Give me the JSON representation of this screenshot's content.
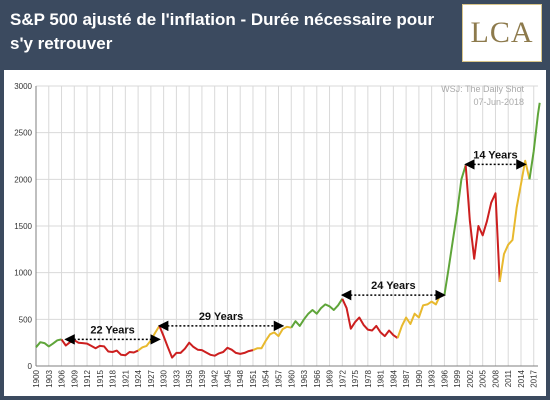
{
  "header": {
    "title": "S&P 500 ajusté de l'inflation - Durée nécessaire pour s'y retrouver",
    "logo_text": "LCA"
  },
  "chart_data": {
    "type": "line",
    "source": "WSJ: The Daily Shot",
    "date": "07-Jun-2018",
    "ylim": [
      0,
      3000
    ],
    "xlim": [
      1900,
      2018
    ],
    "y_ticks": [
      0,
      500,
      1000,
      1500,
      2000,
      2500,
      3000
    ],
    "x_ticks": [
      1900,
      1903,
      1906,
      1909,
      1912,
      1915,
      1918,
      1921,
      1924,
      1927,
      1930,
      1933,
      1936,
      1939,
      1942,
      1945,
      1948,
      1951,
      1954,
      1957,
      1960,
      1963,
      1966,
      1969,
      1972,
      1975,
      1978,
      1981,
      1984,
      1987,
      1990,
      1993,
      1996,
      1999,
      2002,
      2005,
      2008,
      2011,
      2014,
      2017
    ],
    "grid": true,
    "colors": {
      "green": "#5fa53a",
      "red": "#cc1f1f",
      "yellow": "#e8b92e",
      "grid": "#d9d9d9",
      "axis": "#7f7f7f",
      "text": "#333333"
    },
    "series": [
      {
        "color": "green",
        "points": [
          [
            1900,
            200
          ],
          [
            1901,
            255
          ],
          [
            1902,
            245
          ],
          [
            1903,
            210
          ],
          [
            1904,
            240
          ],
          [
            1905,
            275
          ],
          [
            1906,
            285
          ]
        ]
      },
      {
        "color": "red",
        "points": [
          [
            1906,
            285
          ],
          [
            1907,
            220
          ],
          [
            1908,
            255
          ],
          [
            1909,
            275
          ],
          [
            1910,
            250
          ],
          [
            1911,
            245
          ],
          [
            1912,
            240
          ],
          [
            1913,
            215
          ],
          [
            1914,
            190
          ],
          [
            1915,
            215
          ],
          [
            1916,
            210
          ],
          [
            1917,
            155
          ],
          [
            1918,
            150
          ],
          [
            1919,
            165
          ],
          [
            1920,
            120
          ],
          [
            1921,
            115
          ],
          [
            1922,
            150
          ],
          [
            1923,
            145
          ],
          [
            1924,
            165
          ]
        ]
      },
      {
        "color": "yellow",
        "points": [
          [
            1924,
            165
          ],
          [
            1925,
            200
          ],
          [
            1926,
            215
          ],
          [
            1927,
            275
          ],
          [
            1928,
            355
          ],
          [
            1929,
            430
          ]
        ]
      },
      {
        "color": "red",
        "points": [
          [
            1929,
            430
          ],
          [
            1930,
            320
          ],
          [
            1931,
            200
          ],
          [
            1932,
            90
          ],
          [
            1933,
            140
          ],
          [
            1934,
            140
          ],
          [
            1935,
            185
          ],
          [
            1936,
            250
          ],
          [
            1937,
            205
          ],
          [
            1938,
            175
          ],
          [
            1939,
            170
          ],
          [
            1940,
            145
          ],
          [
            1941,
            120
          ],
          [
            1942,
            110
          ],
          [
            1943,
            135
          ],
          [
            1944,
            150
          ],
          [
            1945,
            195
          ],
          [
            1946,
            175
          ],
          [
            1947,
            140
          ],
          [
            1948,
            130
          ],
          [
            1949,
            140
          ],
          [
            1950,
            160
          ],
          [
            1951,
            170
          ]
        ]
      },
      {
        "color": "yellow",
        "points": [
          [
            1951,
            170
          ],
          [
            1952,
            190
          ],
          [
            1953,
            190
          ],
          [
            1954,
            270
          ],
          [
            1955,
            340
          ],
          [
            1956,
            360
          ],
          [
            1957,
            320
          ],
          [
            1958,
            395
          ],
          [
            1959,
            420
          ],
          [
            1960,
            410
          ]
        ]
      },
      {
        "color": "green",
        "points": [
          [
            1960,
            410
          ],
          [
            1961,
            480
          ],
          [
            1962,
            430
          ],
          [
            1963,
            500
          ],
          [
            1964,
            560
          ],
          [
            1965,
            600
          ],
          [
            1966,
            560
          ],
          [
            1967,
            620
          ],
          [
            1968,
            660
          ],
          [
            1969,
            640
          ],
          [
            1970,
            600
          ],
          [
            1971,
            650
          ],
          [
            1972,
            720
          ]
        ]
      },
      {
        "color": "red",
        "points": [
          [
            1972,
            720
          ],
          [
            1973,
            620
          ],
          [
            1974,
            400
          ],
          [
            1975,
            470
          ],
          [
            1976,
            520
          ],
          [
            1977,
            440
          ],
          [
            1978,
            390
          ],
          [
            1979,
            380
          ],
          [
            1980,
            430
          ],
          [
            1981,
            360
          ],
          [
            1982,
            320
          ],
          [
            1983,
            380
          ],
          [
            1984,
            330
          ],
          [
            1985,
            300
          ]
        ]
      },
      {
        "color": "yellow",
        "points": [
          [
            1985,
            300
          ],
          [
            1986,
            430
          ],
          [
            1987,
            520
          ],
          [
            1988,
            450
          ],
          [
            1989,
            560
          ],
          [
            1990,
            520
          ],
          [
            1991,
            650
          ],
          [
            1992,
            660
          ],
          [
            1993,
            690
          ],
          [
            1994,
            660
          ],
          [
            1995,
            760
          ],
          [
            1996,
            760
          ]
        ]
      },
      {
        "color": "green",
        "points": [
          [
            1996,
            760
          ],
          [
            1997,
            1050
          ],
          [
            1998,
            1350
          ],
          [
            1999,
            1650
          ],
          [
            2000,
            2000
          ],
          [
            2001,
            2150
          ]
        ]
      },
      {
        "color": "red",
        "points": [
          [
            2001,
            2150
          ],
          [
            2002,
            1550
          ],
          [
            2003,
            1150
          ],
          [
            2004,
            1500
          ],
          [
            2005,
            1400
          ],
          [
            2006,
            1550
          ],
          [
            2007,
            1750
          ],
          [
            2008,
            1850
          ],
          [
            2009,
            900
          ]
        ]
      },
      {
        "color": "yellow",
        "points": [
          [
            2009,
            900
          ],
          [
            2010,
            1200
          ],
          [
            2011,
            1300
          ],
          [
            2012,
            1350
          ],
          [
            2013,
            1700
          ],
          [
            2014,
            1950
          ],
          [
            2015,
            2200
          ],
          [
            2016,
            2000
          ]
        ]
      },
      {
        "color": "green",
        "points": [
          [
            2016,
            2000
          ],
          [
            2017,
            2300
          ],
          [
            2018,
            2700
          ],
          [
            2018.4,
            2820
          ]
        ]
      }
    ],
    "annotations": [
      {
        "label": "22 Years",
        "x_start": 1907,
        "x_end": 1929,
        "y": 285
      },
      {
        "label": "29 Years",
        "x_start": 1929,
        "x_end": 1958,
        "y": 430
      },
      {
        "label": "24 Years",
        "x_start": 1972,
        "x_end": 1996,
        "y": 760
      },
      {
        "label": "14 Years",
        "x_start": 2001,
        "x_end": 2015,
        "y": 2160
      }
    ]
  }
}
